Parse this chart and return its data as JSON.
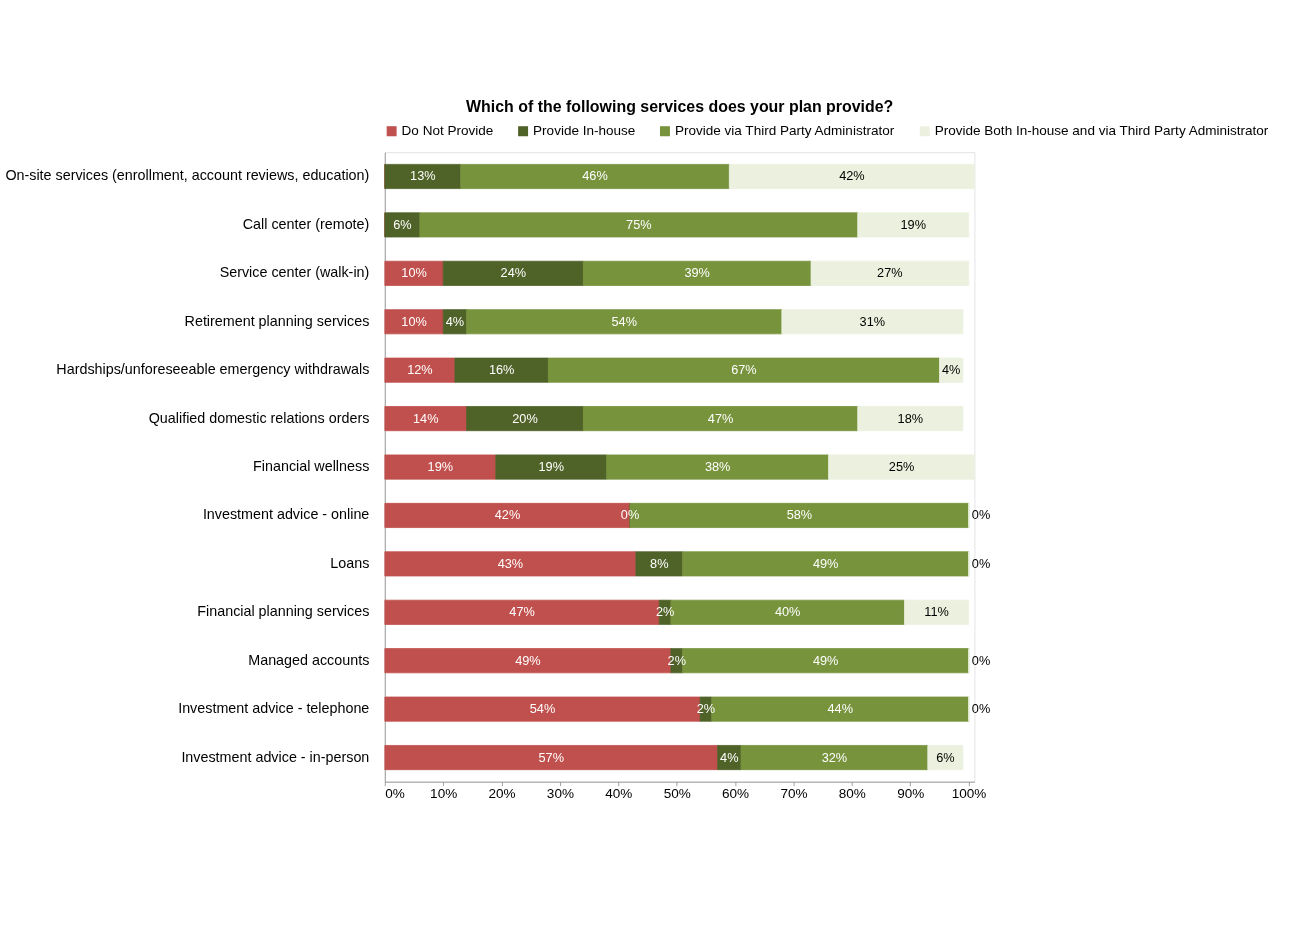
{
  "chart_data": {
    "type": "bar",
    "orientation": "horizontal",
    "stacked": true,
    "title": "Which of the following services does your plan provide?",
    "categories": [
      "On-site services (enrollment, account reviews, education)",
      "Call center (remote)",
      "Service center (walk-in)",
      "Retirement planning services",
      "Hardships/unforeseeable emergency withdrawals",
      "Qualified domestic relations orders",
      "Financial wellness",
      "Investment advice - online",
      "Loans",
      "Financial planning services",
      "Managed accounts",
      "Investment advice - telephone",
      "Investment advice - in-person"
    ],
    "series": [
      {
        "name": "Do Not Provide",
        "color": "#c0504d",
        "values": [
          0,
          0,
          10,
          10,
          12,
          14,
          19,
          42,
          43,
          47,
          49,
          54,
          57
        ],
        "value_labels": [
          null,
          null,
          "10%",
          "10%",
          "12%",
          "14%",
          "19%",
          "42%",
          "43%",
          "47%",
          "49%",
          "54%",
          "57%"
        ]
      },
      {
        "name": "Provide In-house",
        "color": "#4f6228",
        "values": [
          13,
          6,
          24,
          4,
          16,
          20,
          19,
          0,
          8,
          2,
          2,
          2,
          4
        ],
        "value_labels": [
          "13%",
          "6%",
          "24%",
          "4%",
          "16%",
          "20%",
          "19%",
          "0%",
          "8%",
          "2%",
          "2%",
          "2%",
          "4%"
        ]
      },
      {
        "name": "Provide via Third Party Administrator",
        "color": "#77933c",
        "values": [
          46,
          75,
          39,
          54,
          67,
          47,
          38,
          58,
          49,
          40,
          49,
          44,
          32
        ],
        "value_labels": [
          "46%",
          "75%",
          "39%",
          "54%",
          "67%",
          "47%",
          "38%",
          "58%",
          "49%",
          "40%",
          "49%",
          "44%",
          "32%"
        ]
      },
      {
        "name": "Provide Both In-house and via Third Party Administrator",
        "color": "#ebf1de",
        "values": [
          42,
          19,
          27,
          31,
          4,
          18,
          25,
          0,
          0,
          11,
          0,
          0,
          6
        ],
        "value_labels": [
          "42%",
          "19%",
          "27%",
          "31%",
          "4%",
          "18%",
          "25%",
          "0%",
          "0%",
          "11%",
          "0%",
          "0%",
          "6%"
        ]
      }
    ],
    "xlim": [
      0,
      101
    ],
    "xticks": [
      {
        "value": 0,
        "label": "0%"
      },
      {
        "value": 10,
        "label": "10%"
      },
      {
        "value": 20,
        "label": "20%"
      },
      {
        "value": 30,
        "label": "30%"
      },
      {
        "value": 40,
        "label": "40%"
      },
      {
        "value": 50,
        "label": "50%"
      },
      {
        "value": 60,
        "label": "60%"
      },
      {
        "value": 70,
        "label": "70%"
      },
      {
        "value": 80,
        "label": "80%"
      },
      {
        "value": 90,
        "label": "90%"
      },
      {
        "value": 100,
        "label": "100%"
      }
    ],
    "legend": "top",
    "grid": false
  }
}
